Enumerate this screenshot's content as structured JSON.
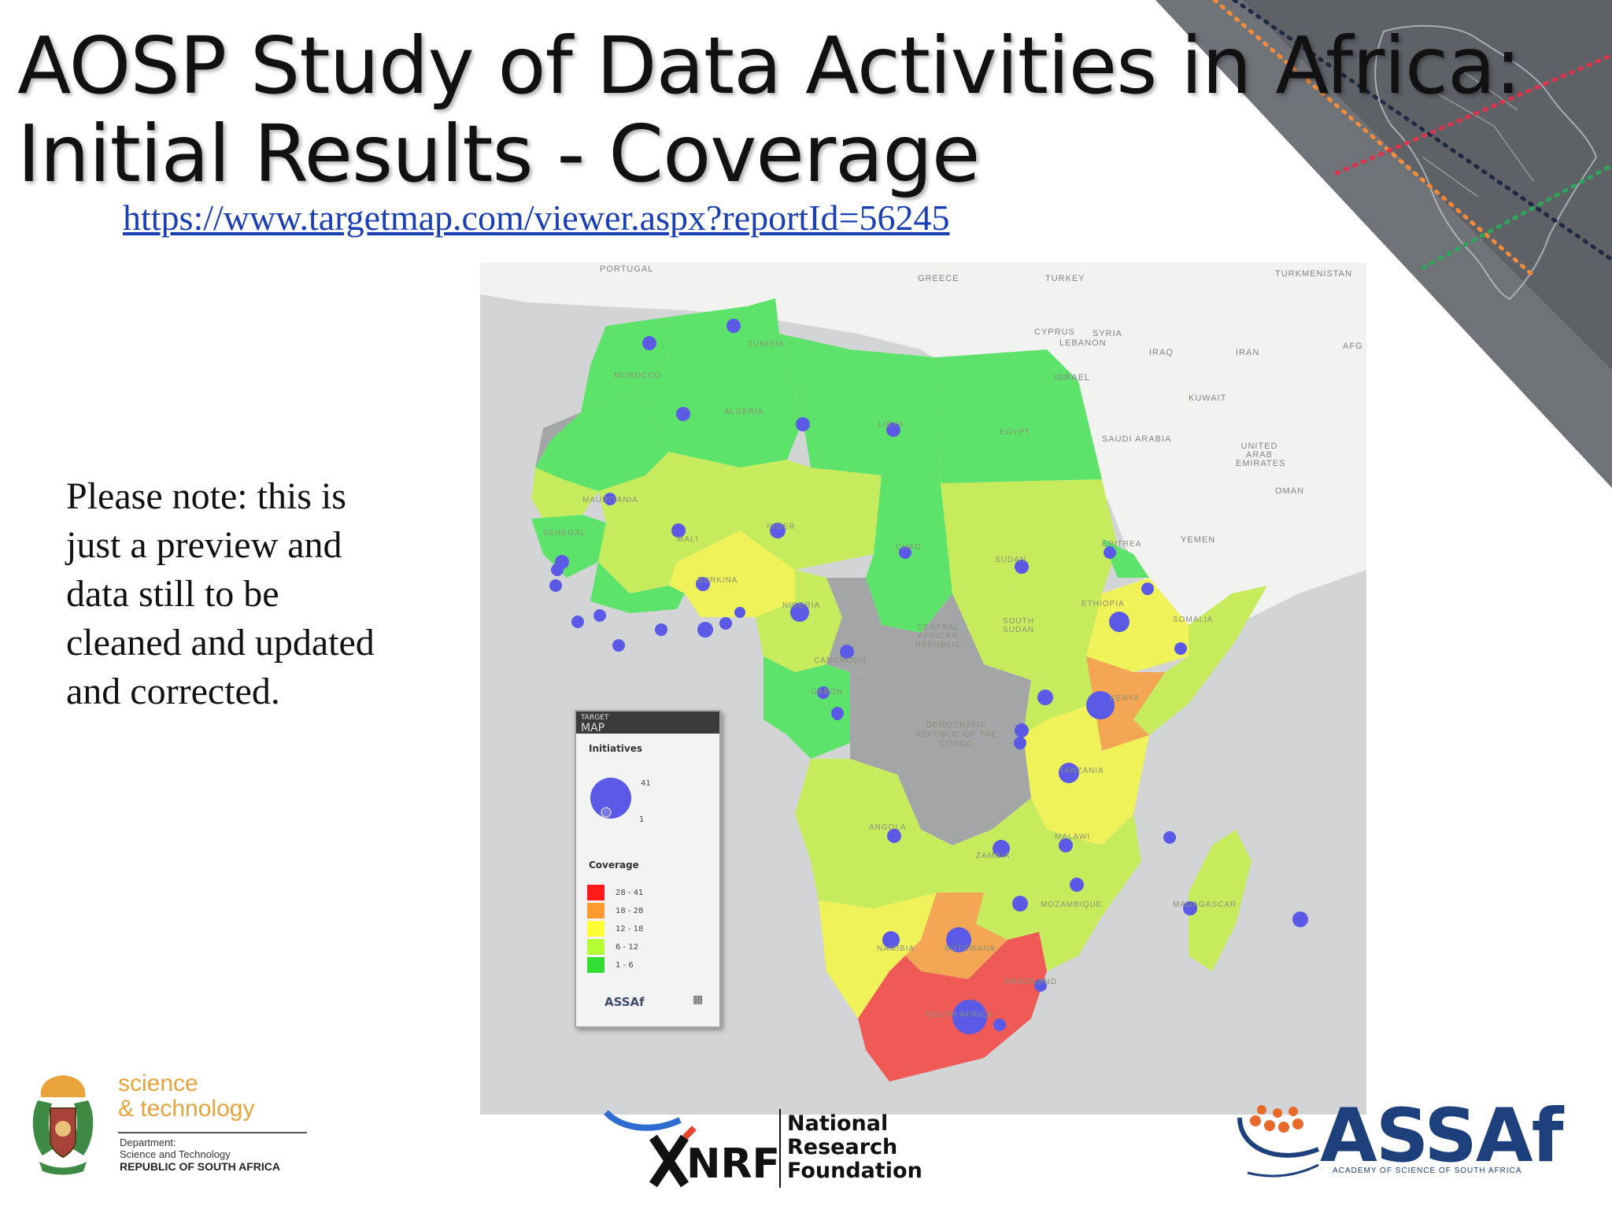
{
  "slide": {
    "title_line1": "AOSP Study of Data Activities in Africa:",
    "title_line2": "Initial Results - Coverage",
    "link_text": "https://www.targetmap.com/viewer.aspx?reportId=56245",
    "note_text": "Please note: this is just a preview and data still to be cleaned and updated and corrected."
  },
  "map": {
    "region_labels": [
      "PORTUGAL",
      "GREECE",
      "TURKEY",
      "TURKMENISTAN",
      "SYRIA",
      "IRAQ",
      "IRAN",
      "AFG",
      "KUWAIT",
      "SAUDI ARABIA",
      "UNITED ARAB EMIRATES",
      "OMAN",
      "YEMEN",
      "ISRAEL",
      "LEBANON",
      "CYPRUS"
    ],
    "country_labels": [
      "MOROCCO",
      "ALGERIA",
      "TUNISIA",
      "LIBYA",
      "EGYPT",
      "MAURITANIA",
      "MALI",
      "NIGER",
      "CHAD",
      "SUDAN",
      "SOUTH SUDAN",
      "ETHIOPIA",
      "SOMALIA",
      "ERITREA",
      "SENEGAL",
      "BURKINA",
      "NIGERIA",
      "CAMEROON",
      "CENTRAL AFRICAN REPUBLIC",
      "DEMOCRATIC REPUBLIC OF THE CONGO",
      "GABON",
      "KENYA",
      "TANZANIA",
      "ANGOLA",
      "ZAMBIA",
      "MALAWI",
      "MOZAMBIQUE",
      "NAMIBIA",
      "BOTSWANA",
      "SOUTH AFRICA",
      "MADAGASCAR",
      "SWAZILAND"
    ],
    "colors": {
      "sea": "#d3d4d6",
      "no_data": "#a4a5a7",
      "bin_1_6": "#5ee36a",
      "bin_6_12": "#c6ec5e",
      "bin_12_18": "#f0f25a",
      "bin_18_28": "#f3a653",
      "bin_28_41": "#ef5a57",
      "bubble": "#5a5ae6"
    }
  },
  "legend": {
    "brand_small": "TARGET",
    "brand_big": "MAP",
    "initiatives_heading": "Initiatives",
    "size_max": "41",
    "size_min": "1",
    "coverage_heading": "Coverage",
    "bins": [
      {
        "range": "28 - 41",
        "color": "#ff1a1a"
      },
      {
        "range": "18 - 28",
        "color": "#ff9a2e"
      },
      {
        "range": "12 - 18",
        "color": "#ffff33"
      },
      {
        "range": "6 - 12",
        "color": "#b3ff33"
      },
      {
        "range": "1 - 6",
        "color": "#33dd33"
      }
    ],
    "footer_logo": "ASSAf"
  },
  "logos": {
    "dst_line1": "science",
    "dst_line2": "& technology",
    "dst_dept1": "Department:",
    "dst_dept2": "Science and Technology",
    "dst_country": "REPUBLIC OF SOUTH AFRICA",
    "nrf_mark": "NRF",
    "nrf_name1": "National",
    "nrf_name2": "Research",
    "nrf_name3": "Foundation",
    "assaf_word": "ASSAf",
    "assaf_sub": "ACADEMY OF SCIENCE OF SOUTH AFRICA"
  }
}
